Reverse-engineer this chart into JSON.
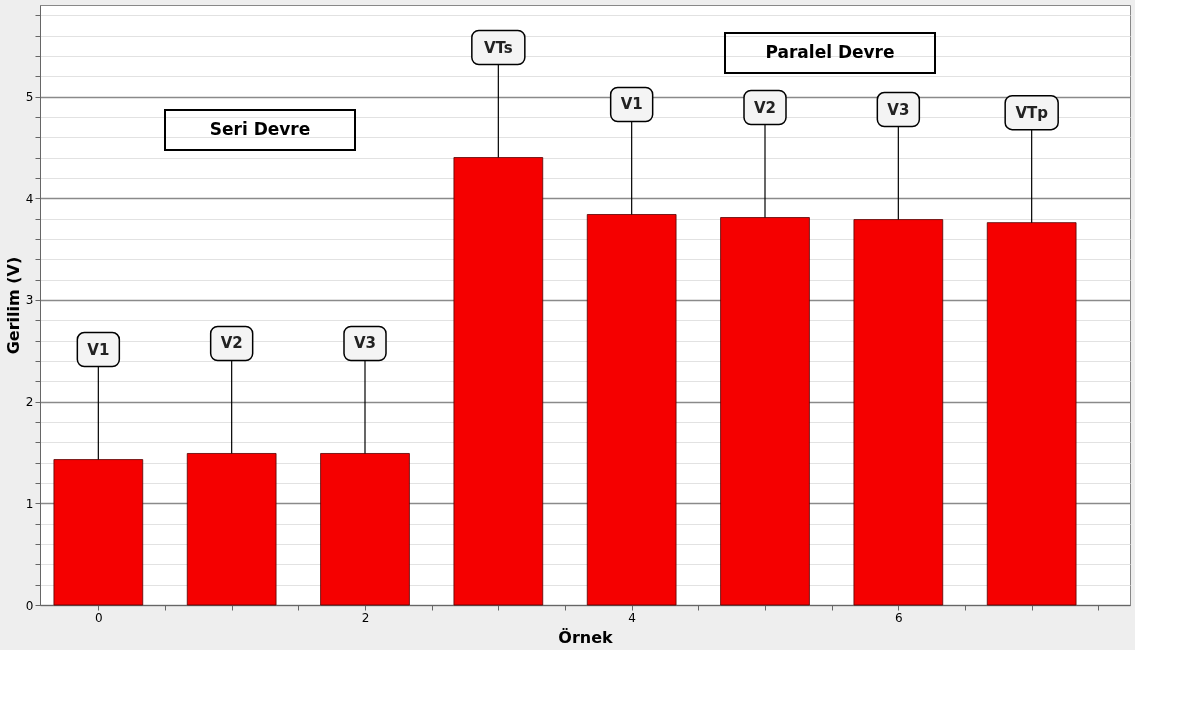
{
  "chart_data": {
    "type": "bar",
    "xlabel": "Örnek",
    "ylabel": "Gerilim (V)",
    "x": [
      0,
      1,
      2,
      3,
      4,
      5,
      6,
      7
    ],
    "values": [
      1.43,
      1.49,
      1.49,
      4.4,
      3.84,
      3.81,
      3.79,
      3.76
    ],
    "color": "#f50000",
    "xlim": [
      -0.4,
      7.7
    ],
    "xticks": [
      0,
      {
        "value": 0.5,
        "label": null
      },
      {
        "value": 1,
        "label": null
      },
      {
        "value": 1.5,
        "label": null
      },
      2,
      {
        "value": 2.5,
        "label": null
      },
      {
        "value": 3,
        "label": null
      },
      {
        "value": 3.5,
        "label": null
      },
      4,
      {
        "value": 4.5,
        "label": null
      },
      {
        "value": 5,
        "label": null
      },
      {
        "value": 5.5,
        "label": null
      },
      6,
      {
        "value": 6.5,
        "label": null
      },
      {
        "value": 7,
        "label": null
      },
      {
        "value": 7.5,
        "label": null
      }
    ],
    "ylim": [
      0,
      5.9
    ],
    "yticks": [
      0,
      {
        "value": 0.2,
        "label": null
      },
      {
        "value": 0.4,
        "label": null
      },
      {
        "value": 0.6,
        "label": null
      },
      {
        "value": 0.8,
        "label": null
      },
      1,
      {
        "value": 1.2,
        "label": null
      },
      {
        "value": 1.4,
        "label": null
      },
      {
        "value": 1.6,
        "label": null
      },
      {
        "value": 1.8,
        "label": null
      },
      2,
      {
        "value": 2.2,
        "label": null
      },
      {
        "value": 2.4,
        "label": null
      },
      {
        "value": 2.6,
        "label": null
      },
      {
        "value": 2.8,
        "label": null
      },
      3,
      {
        "value": 3.2,
        "label": null
      },
      {
        "value": 3.4,
        "label": null
      },
      {
        "value": 3.6,
        "label": null
      },
      {
        "value": 3.8,
        "label": null
      },
      4,
      {
        "value": 4.2,
        "label": null
      },
      {
        "value": 4.4,
        "label": null
      },
      {
        "value": 4.6,
        "label": null
      },
      {
        "value": 4.8,
        "label": null
      },
      5,
      {
        "value": 5.2,
        "label": null
      },
      {
        "value": 5.4,
        "label": null
      },
      {
        "value": 5.6,
        "label": null
      },
      {
        "value": 5.8,
        "label": null
      }
    ],
    "grid": "y",
    "annotations": [
      {
        "text": "V1",
        "x": 0,
        "y": 1.43
      },
      {
        "text": "V2",
        "x": 1,
        "y": 1.49
      },
      {
        "text": "V3",
        "x": 2,
        "y": 1.49
      },
      {
        "text": "VTs",
        "x": 3,
        "y": 4.4
      },
      {
        "text": "V1",
        "x": 4,
        "y": 3.84
      },
      {
        "text": "V2",
        "x": 5,
        "y": 3.81
      },
      {
        "text": "V3",
        "x": 6,
        "y": 3.79
      },
      {
        "text": "VTp",
        "x": 7,
        "y": 3.76
      },
      "Seri Devre",
      "Paralel Devre"
    ]
  }
}
